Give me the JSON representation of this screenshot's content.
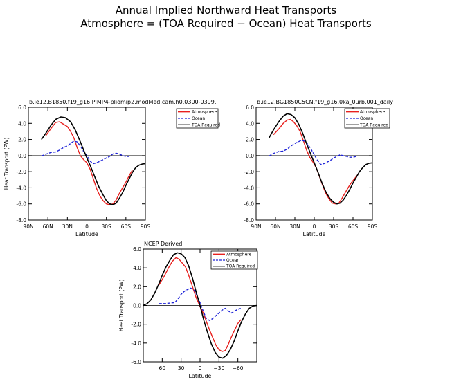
{
  "page_title": {
    "line1": "Annual Implied Northward Heat Transports",
    "line2": "Atmosphere = (TOA Required − Ocean) Heat Transports"
  },
  "colors": {
    "atmosphere": "#e8201e",
    "ocean": "#1f24d8",
    "toa": "#000000"
  },
  "chart_data": [
    {
      "type": "line",
      "title": "b.ie12.B1850.f19_g16.PIMP4-pliomip2.modMed.cam.h0.0300-0399.",
      "xlabel": "Latitude",
      "ylabel": "Heat Transport (PW)",
      "xlim": [
        90,
        -90
      ],
      "ylim": [
        -8,
        6
      ],
      "xticks": [
        90,
        60,
        30,
        0,
        -30,
        -60,
        -90
      ],
      "xticklabels": [
        "90N",
        "60N",
        "30N",
        "0",
        "30S",
        "60S",
        "90S"
      ],
      "yticks": [
        -8,
        -6,
        -4,
        -2,
        0,
        2,
        4,
        6
      ],
      "yticklabels": [
        "-8.0",
        "-6.0",
        "-4.0",
        "-2.0",
        "0.0",
        "2.0",
        "4.0",
        "6.0"
      ],
      "legend": "top-right",
      "series": [
        {
          "name": "Atmosphere",
          "style": "solid",
          "x": [
            63,
            55,
            48,
            42,
            36,
            30,
            25,
            20,
            15,
            10,
            5,
            0,
            -5,
            -10,
            -15,
            -20,
            -25,
            -30,
            -35,
            -40,
            -45,
            -50,
            -55,
            -60,
            -65,
            -70
          ],
          "y": [
            2.5,
            3.4,
            4.1,
            4.2,
            3.9,
            3.6,
            3.0,
            2.2,
            1.0,
            0.0,
            -0.5,
            -0.9,
            -1.7,
            -2.9,
            -4.1,
            -5.0,
            -5.6,
            -6.0,
            -6.1,
            -6.0,
            -5.5,
            -4.7,
            -4.0,
            -3.3,
            -2.5,
            -1.8
          ]
        },
        {
          "name": "Ocean",
          "style": "dashed",
          "x": [
            70,
            62,
            55,
            48,
            42,
            36,
            30,
            25,
            20,
            15,
            10,
            5,
            0,
            -5,
            -10,
            -15,
            -20,
            -25,
            -30,
            -35,
            -40,
            -45,
            -50,
            -55,
            -60,
            -65
          ],
          "y": [
            -0.05,
            0.2,
            0.4,
            0.45,
            0.7,
            1.0,
            1.2,
            1.5,
            1.8,
            1.7,
            1.2,
            0.5,
            0.0,
            -0.7,
            -1.0,
            -0.9,
            -0.7,
            -0.5,
            -0.3,
            -0.1,
            0.2,
            0.3,
            0.2,
            0.0,
            -0.1,
            -0.1
          ]
        },
        {
          "name": "TOA Required",
          "style": "solid",
          "x": [
            70,
            63,
            55,
            48,
            40,
            33,
            25,
            18,
            10,
            3,
            0,
            -5,
            -10,
            -18,
            -25,
            -30,
            -35,
            -40,
            -45,
            -50,
            -55,
            -60,
            -65,
            -70,
            -75,
            -80,
            -85,
            -90
          ],
          "y": [
            2.0,
            2.8,
            3.8,
            4.5,
            4.8,
            4.7,
            4.2,
            3.2,
            1.7,
            0.3,
            -0.3,
            -1.2,
            -2.2,
            -3.8,
            -4.9,
            -5.6,
            -6.0,
            -6.1,
            -5.9,
            -5.3,
            -4.6,
            -3.7,
            -2.9,
            -2.1,
            -1.5,
            -1.2,
            -1.05,
            -1.0
          ]
        }
      ]
    },
    {
      "type": "line",
      "title": "b.ie12.BG1850C5CN.f19_g16.0ka_0urb.001_daily",
      "xlabel": "Latitude",
      "ylabel": "",
      "xlim": [
        90,
        -90
      ],
      "ylim": [
        -8,
        6
      ],
      "xticks": [
        90,
        60,
        30,
        0,
        -30,
        -60,
        -90
      ],
      "xticklabels": [
        "90N",
        "60N",
        "30N",
        "0",
        "30S",
        "60S",
        "90S"
      ],
      "yticks": [
        -8,
        -6,
        -4,
        -2,
        0,
        2,
        4,
        6
      ],
      "yticklabels": [
        "-8.0",
        "-6.0",
        "-4.0",
        "-2.0",
        "0.0",
        "2.0",
        "4.0",
        "6.0"
      ],
      "legend": "top-right",
      "series": [
        {
          "name": "Atmosphere",
          "style": "solid",
          "x": [
            63,
            55,
            48,
            42,
            37,
            32,
            27,
            22,
            17,
            12,
            7,
            2,
            -3,
            -8,
            -13,
            -18,
            -23,
            -28,
            -33,
            -38,
            -43,
            -48,
            -53,
            -58,
            -63,
            -68
          ],
          "y": [
            2.6,
            3.3,
            4.0,
            4.4,
            4.5,
            4.2,
            3.7,
            3.0,
            1.9,
            0.7,
            -0.2,
            -0.8,
            -1.5,
            -2.6,
            -3.7,
            -4.7,
            -5.4,
            -5.9,
            -6.0,
            -5.9,
            -5.3,
            -4.6,
            -3.9,
            -3.3,
            -2.8,
            -2.3
          ]
        },
        {
          "name": "Ocean",
          "style": "dashed",
          "x": [
            70,
            62,
            55,
            48,
            42,
            36,
            30,
            25,
            20,
            15,
            10,
            5,
            0,
            -5,
            -10,
            -15,
            -20,
            -25,
            -30,
            -35,
            -40,
            -45,
            -50,
            -55,
            -60,
            -65
          ],
          "y": [
            -0.05,
            0.3,
            0.5,
            0.55,
            0.8,
            1.2,
            1.5,
            1.7,
            1.9,
            1.8,
            1.4,
            0.8,
            0.1,
            -0.6,
            -1.1,
            -1.0,
            -0.8,
            -0.6,
            -0.3,
            -0.1,
            0.1,
            0.0,
            -0.1,
            -0.2,
            -0.2,
            -0.1
          ]
        },
        {
          "name": "TOA Required",
          "style": "solid",
          "x": [
            70,
            63,
            55,
            48,
            42,
            36,
            30,
            24,
            18,
            12,
            6,
            0,
            -6,
            -12,
            -18,
            -24,
            -30,
            -35,
            -40,
            -45,
            -50,
            -55,
            -60,
            -65,
            -70,
            -75,
            -80,
            -85,
            -90
          ],
          "y": [
            2.2,
            3.2,
            4.2,
            4.9,
            5.2,
            5.1,
            4.7,
            3.9,
            2.8,
            1.5,
            0.3,
            -0.9,
            -2.1,
            -3.4,
            -4.5,
            -5.3,
            -5.8,
            -6.0,
            -5.9,
            -5.5,
            -4.9,
            -4.2,
            -3.4,
            -2.7,
            -2.0,
            -1.5,
            -1.1,
            -0.95,
            -0.9
          ]
        }
      ]
    },
    {
      "type": "line",
      "title": "NCEP Derived",
      "xlabel": "Latitude",
      "ylabel": "Heat Transport (PW)",
      "xlim": [
        90,
        -90
      ],
      "ylim": [
        -6,
        6
      ],
      "xticks": [
        60,
        30,
        0,
        -30,
        -60
      ],
      "xticklabels": [
        "60",
        "30",
        "0",
        "−30",
        "−60"
      ],
      "yticks": [
        -6,
        -4,
        -2,
        0,
        2,
        4,
        6
      ],
      "yticklabels": [
        "-6.0",
        "-4.0",
        "-2.0",
        "0.0",
        "2.0",
        "4.0",
        "6.0"
      ],
      "legend": "top-right",
      "series": [
        {
          "name": "Atmosphere",
          "style": "solid",
          "x": [
            65,
            57,
            50,
            44,
            38,
            33,
            28,
            23,
            18,
            12,
            6,
            0,
            -5,
            -10,
            -15,
            -20,
            -25,
            -30,
            -35,
            -40,
            -45,
            -50,
            -55,
            -60,
            -65
          ],
          "y": [
            2.2,
            3.1,
            4.0,
            4.7,
            5.1,
            4.9,
            4.5,
            4.1,
            3.2,
            2.0,
            0.8,
            -0.1,
            -0.8,
            -1.7,
            -2.6,
            -3.4,
            -4.2,
            -4.7,
            -4.9,
            -4.8,
            -4.1,
            -3.3,
            -2.6,
            -1.9,
            -1.5
          ]
        },
        {
          "name": "Ocean",
          "style": "dashed",
          "x": [
            65,
            55,
            48,
            40,
            35,
            30,
            25,
            20,
            15,
            10,
            5,
            0,
            -5,
            -10,
            -15,
            -20,
            -25,
            -30,
            -35,
            -40,
            -45,
            -50,
            -55,
            -60,
            -65
          ],
          "y": [
            0.2,
            0.2,
            0.25,
            0.3,
            0.7,
            1.2,
            1.5,
            1.7,
            1.85,
            1.7,
            1.1,
            0.3,
            -0.6,
            -1.4,
            -1.6,
            -1.4,
            -1.1,
            -0.8,
            -0.5,
            -0.3,
            -0.6,
            -0.8,
            -0.6,
            -0.4,
            -0.3
          ]
        },
        {
          "name": "TOA Required",
          "style": "solid",
          "x": [
            90,
            84,
            78,
            72,
            66,
            60,
            54,
            48,
            42,
            36,
            30,
            24,
            18,
            12,
            6,
            0,
            -6,
            -12,
            -18,
            -24,
            -30,
            -36,
            -42,
            -48,
            -54,
            -60,
            -66,
            -72,
            -78,
            -84,
            -90
          ],
          "y": [
            0.0,
            0.2,
            0.6,
            1.3,
            2.2,
            3.2,
            4.1,
            4.8,
            5.4,
            5.6,
            5.5,
            5.1,
            4.2,
            2.9,
            1.4,
            0.0,
            -1.6,
            -2.9,
            -4.1,
            -5.0,
            -5.5,
            -5.6,
            -5.3,
            -4.7,
            -3.8,
            -2.7,
            -1.7,
            -0.9,
            -0.3,
            -0.05,
            0.0
          ]
        }
      ]
    }
  ]
}
